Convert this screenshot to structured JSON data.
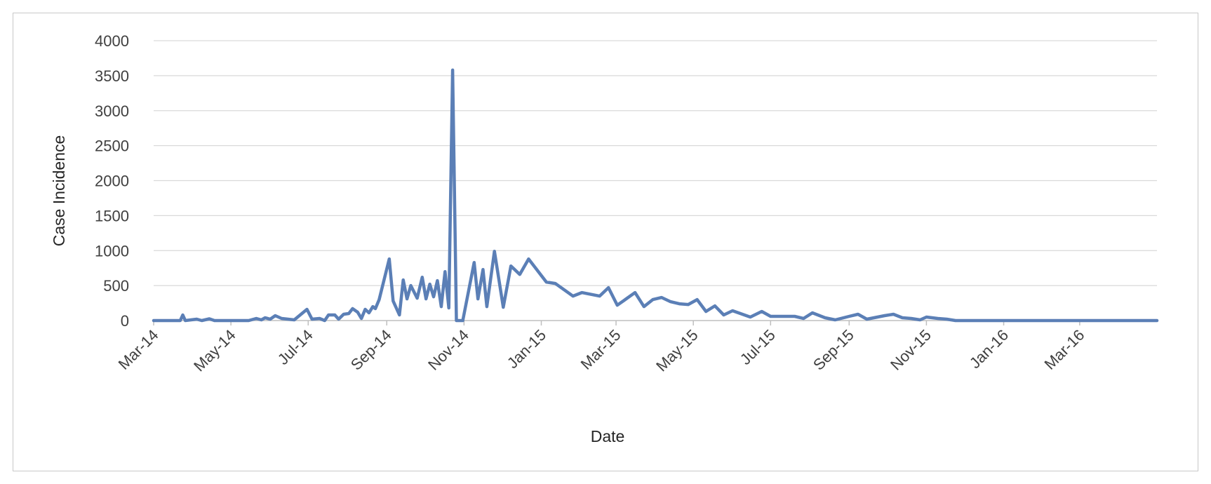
{
  "chart_data": {
    "type": "line",
    "title": "",
    "xlabel": "Date",
    "ylabel": "Case Incidence",
    "x_scale": "date",
    "xlim": [
      "2014-03-01",
      "2016-05-01"
    ],
    "ylim": [
      0,
      4000
    ],
    "grid": "horizontal",
    "legend": "none",
    "line_color": "#5B7FB6",
    "y_ticks": [
      0,
      500,
      1000,
      1500,
      2000,
      2500,
      3000,
      3500,
      4000
    ],
    "x_ticks": [
      {
        "date": "2014-03-01",
        "label": "Mar-14"
      },
      {
        "date": "2014-05-01",
        "label": "May-14"
      },
      {
        "date": "2014-07-01",
        "label": "Jul-14"
      },
      {
        "date": "2014-09-01",
        "label": "Sep-14"
      },
      {
        "date": "2014-11-01",
        "label": "Nov-14"
      },
      {
        "date": "2015-01-01",
        "label": "Jan-15"
      },
      {
        "date": "2015-03-01",
        "label": "Mar-15"
      },
      {
        "date": "2015-05-01",
        "label": "May-15"
      },
      {
        "date": "2015-07-01",
        "label": "Jul-15"
      },
      {
        "date": "2015-09-01",
        "label": "Sep-15"
      },
      {
        "date": "2015-11-01",
        "label": "Nov-15"
      },
      {
        "date": "2016-01-01",
        "label": "Jan-16"
      },
      {
        "date": "2016-03-01",
        "label": "Mar-16"
      }
    ],
    "series": [
      {
        "points": [
          [
            "2014-03-01",
            0
          ],
          [
            "2014-03-22",
            0
          ],
          [
            "2014-03-24",
            80
          ],
          [
            "2014-03-26",
            0
          ],
          [
            "2014-04-04",
            20
          ],
          [
            "2014-04-08",
            0
          ],
          [
            "2014-04-14",
            25
          ],
          [
            "2014-04-18",
            0
          ],
          [
            "2014-05-15",
            0
          ],
          [
            "2014-05-21",
            30
          ],
          [
            "2014-05-25",
            10
          ],
          [
            "2014-05-28",
            40
          ],
          [
            "2014-06-01",
            20
          ],
          [
            "2014-06-05",
            70
          ],
          [
            "2014-06-10",
            30
          ],
          [
            "2014-06-20",
            10
          ],
          [
            "2014-06-30",
            160
          ],
          [
            "2014-07-04",
            20
          ],
          [
            "2014-07-10",
            30
          ],
          [
            "2014-07-14",
            0
          ],
          [
            "2014-07-17",
            80
          ],
          [
            "2014-07-22",
            80
          ],
          [
            "2014-07-25",
            20
          ],
          [
            "2014-07-29",
            90
          ],
          [
            "2014-08-02",
            100
          ],
          [
            "2014-08-05",
            170
          ],
          [
            "2014-08-09",
            120
          ],
          [
            "2014-08-12",
            30
          ],
          [
            "2014-08-15",
            160
          ],
          [
            "2014-08-18",
            110
          ],
          [
            "2014-08-21",
            200
          ],
          [
            "2014-08-23",
            170
          ],
          [
            "2014-08-26",
            300
          ],
          [
            "2014-09-03",
            880
          ],
          [
            "2014-09-06",
            280
          ],
          [
            "2014-09-11",
            80
          ],
          [
            "2014-09-14",
            580
          ],
          [
            "2014-09-17",
            310
          ],
          [
            "2014-09-20",
            500
          ],
          [
            "2014-09-25",
            320
          ],
          [
            "2014-09-29",
            620
          ],
          [
            "2014-10-02",
            310
          ],
          [
            "2014-10-05",
            520
          ],
          [
            "2014-10-08",
            340
          ],
          [
            "2014-10-11",
            570
          ],
          [
            "2014-10-14",
            200
          ],
          [
            "2014-10-17",
            700
          ],
          [
            "2014-10-20",
            180
          ],
          [
            "2014-10-23",
            3580
          ],
          [
            "2014-10-26",
            0
          ],
          [
            "2014-10-31",
            0
          ],
          [
            "2014-11-09",
            830
          ],
          [
            "2014-11-12",
            310
          ],
          [
            "2014-11-16",
            730
          ],
          [
            "2014-11-19",
            200
          ],
          [
            "2014-11-25",
            990
          ],
          [
            "2014-12-02",
            190
          ],
          [
            "2014-12-08",
            780
          ],
          [
            "2014-12-15",
            660
          ],
          [
            "2014-12-22",
            880
          ],
          [
            "2015-01-05",
            550
          ],
          [
            "2015-01-12",
            530
          ],
          [
            "2015-01-26",
            350
          ],
          [
            "2015-02-02",
            400
          ],
          [
            "2015-02-16",
            350
          ],
          [
            "2015-02-23",
            470
          ],
          [
            "2015-03-02",
            220
          ],
          [
            "2015-03-16",
            400
          ],
          [
            "2015-03-23",
            200
          ],
          [
            "2015-03-30",
            300
          ],
          [
            "2015-04-06",
            330
          ],
          [
            "2015-04-13",
            270
          ],
          [
            "2015-04-20",
            240
          ],
          [
            "2015-04-27",
            230
          ],
          [
            "2015-05-04",
            300
          ],
          [
            "2015-05-11",
            130
          ],
          [
            "2015-05-18",
            210
          ],
          [
            "2015-05-25",
            80
          ],
          [
            "2015-06-01",
            140
          ],
          [
            "2015-06-15",
            50
          ],
          [
            "2015-06-24",
            130
          ],
          [
            "2015-07-01",
            60
          ],
          [
            "2015-07-20",
            60
          ],
          [
            "2015-07-27",
            30
          ],
          [
            "2015-08-03",
            110
          ],
          [
            "2015-08-13",
            40
          ],
          [
            "2015-08-21",
            10
          ],
          [
            "2015-09-01",
            60
          ],
          [
            "2015-09-08",
            90
          ],
          [
            "2015-09-15",
            20
          ],
          [
            "2015-09-29",
            70
          ],
          [
            "2015-10-06",
            90
          ],
          [
            "2015-10-13",
            40
          ],
          [
            "2015-10-20",
            30
          ],
          [
            "2015-10-27",
            10
          ],
          [
            "2015-11-01",
            50
          ],
          [
            "2015-11-10",
            30
          ],
          [
            "2015-11-17",
            20
          ],
          [
            "2015-11-24",
            0
          ],
          [
            "2016-05-01",
            0
          ]
        ]
      }
    ]
  }
}
